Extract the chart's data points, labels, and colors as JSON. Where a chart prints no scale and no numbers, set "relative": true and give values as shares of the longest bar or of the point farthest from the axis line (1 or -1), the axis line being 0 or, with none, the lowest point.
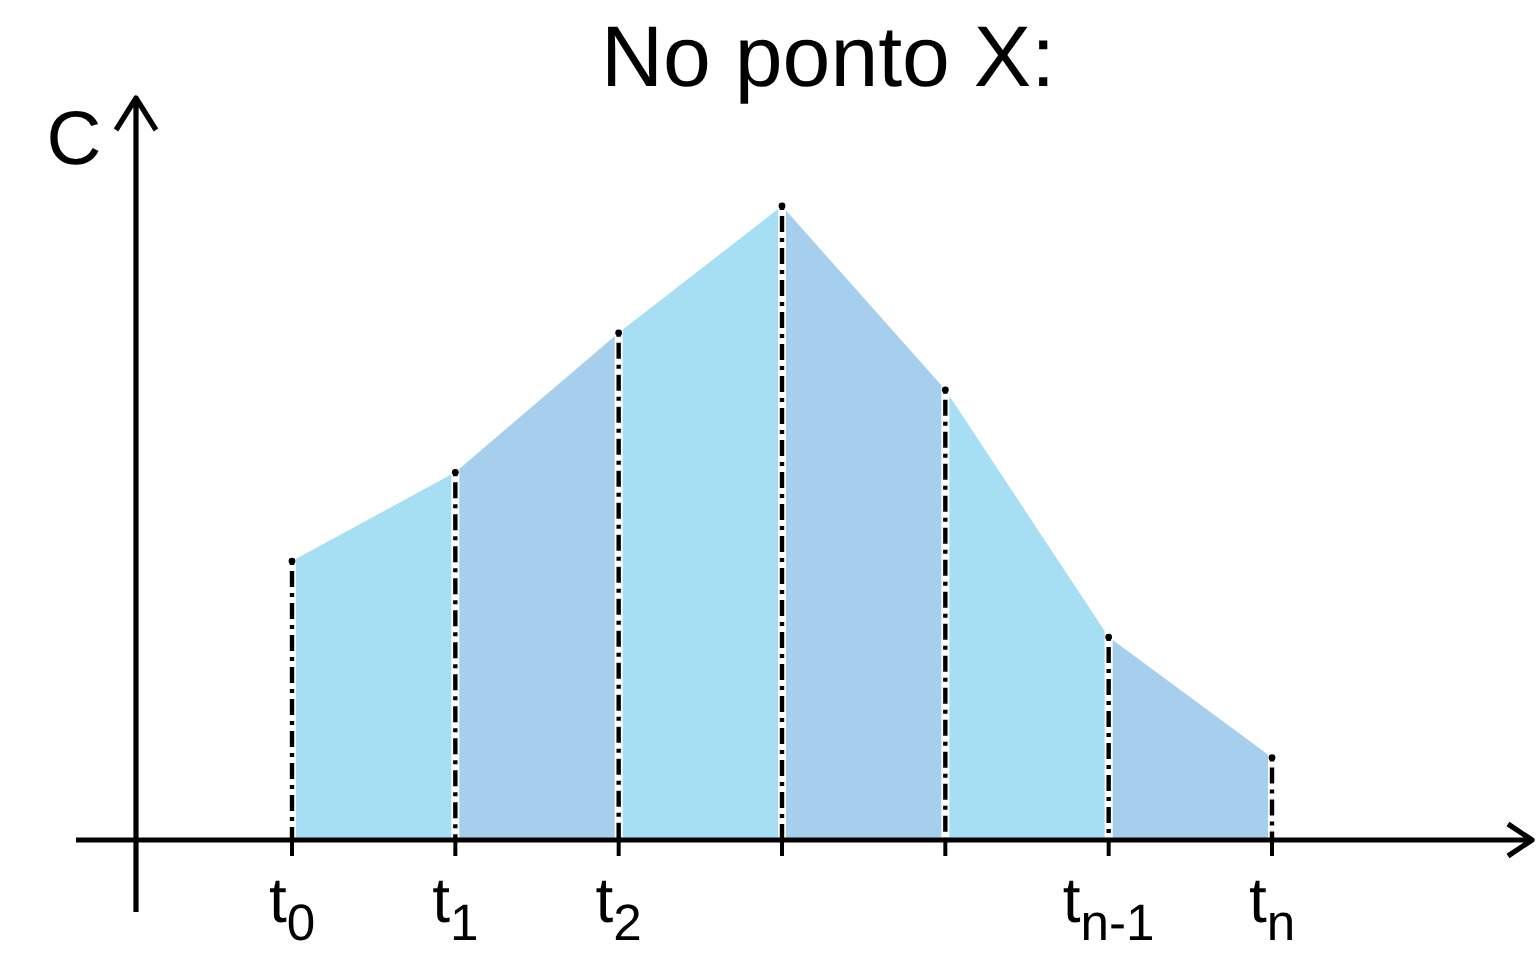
{
  "chart_data": {
    "type": "area",
    "title": "No ponto X:",
    "ylabel": "C",
    "relative": true,
    "grid": "x",
    "categories": [
      "t$_{0}$",
      "t$_{1}$",
      "t$_{2}$",
      null,
      null,
      "t$_{n-1}$",
      "t$_{n}$"
    ],
    "series": [
      {
        "color": "#a6def3",
        "values": [
          0.44,
          0.58,
          null,
          null,
          null,
          null,
          null
        ]
      },
      {
        "color": "#a6ceed",
        "values": [
          null,
          0.58,
          0.8,
          null,
          null,
          null,
          null
        ]
      },
      {
        "color": "#a6def3",
        "values": [
          null,
          null,
          0.8,
          1,
          null,
          null,
          null
        ]
      },
      {
        "color": "#a6ceed",
        "values": [
          null,
          null,
          null,
          1,
          0.71,
          null,
          null
        ]
      },
      {
        "color": "#a6def3",
        "values": [
          null,
          null,
          null,
          null,
          0.71,
          0.32,
          null
        ]
      },
      {
        "color": "#a6ceed",
        "values": [
          null,
          null,
          null,
          null,
          null,
          0.32,
          0.13
        ]
      },
      {
        "type": "lollipop",
        "color": "#000000",
        "marker": "circle",
        "line_style": "dashed",
        "values": [
          0.44,
          0.58,
          0.8,
          1,
          0.71,
          0.32,
          0.13
        ]
      }
    ]
  }
}
